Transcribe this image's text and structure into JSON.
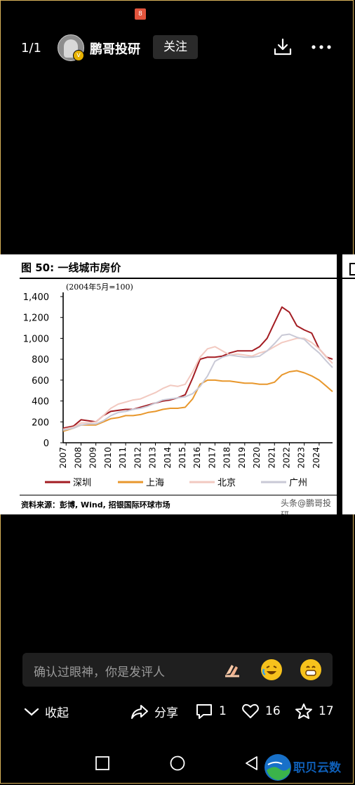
{
  "status": {
    "badge": "8"
  },
  "topbar": {
    "page_indicator": "1/1",
    "author": "鹏哥投研",
    "follow_label": "关注"
  },
  "figure": {
    "title": "图 50: 一线城市房价",
    "note": "(2004年5月=100)",
    "source": "资料来源：彭博, Wind, 招银国际环球市场",
    "watermark": "头条@鹏哥投研"
  },
  "chart_data": {
    "type": "line",
    "ylim": [
      0,
      1400
    ],
    "y_ticks": [
      "0",
      "200",
      "400",
      "600",
      "800",
      "1,000",
      "1,200",
      "1,400"
    ],
    "x_ticks": [
      "2007",
      "2008",
      "2009",
      "2010",
      "2011",
      "2012",
      "2013",
      "2014",
      "2015",
      "2016",
      "2017",
      "2018",
      "2019",
      "2020",
      "2021",
      "2022",
      "2023",
      "2024"
    ],
    "x": [
      2006.8,
      2007.5,
      2008.0,
      2008.5,
      2009.0,
      2009.5,
      2010.0,
      2010.5,
      2011.0,
      2011.5,
      2012.0,
      2012.5,
      2013.0,
      2013.5,
      2014.0,
      2014.5,
      2015.0,
      2015.5,
      2016.0,
      2016.5,
      2017.0,
      2017.5,
      2018.0,
      2018.5,
      2019.0,
      2019.5,
      2020.0,
      2020.5,
      2021.0,
      2021.5,
      2022.0,
      2022.5,
      2023.0,
      2023.5,
      2024.0,
      2024.5,
      2024.9
    ],
    "series": [
      {
        "name": "深圳",
        "color": "#a31c22",
        "values": [
          140,
          160,
          220,
          210,
          200,
          260,
          300,
          310,
          320,
          320,
          340,
          360,
          380,
          400,
          410,
          430,
          460,
          620,
          800,
          820,
          820,
          830,
          860,
          880,
          880,
          880,
          920,
          1000,
          1150,
          1300,
          1250,
          1120,
          1080,
          1050,
          900,
          820,
          800
        ]
      },
      {
        "name": "上海",
        "color": "#e8972c",
        "values": [
          110,
          140,
          170,
          170,
          170,
          200,
          230,
          240,
          260,
          260,
          270,
          290,
          300,
          320,
          330,
          330,
          340,
          420,
          560,
          600,
          600,
          590,
          590,
          580,
          570,
          570,
          560,
          560,
          580,
          650,
          680,
          690,
          670,
          640,
          600,
          540,
          490
        ]
      },
      {
        "name": "北京",
        "color": "#f2c9c0",
        "values": [
          130,
          150,
          190,
          190,
          200,
          260,
          330,
          370,
          390,
          410,
          420,
          450,
          480,
          520,
          550,
          540,
          560,
          680,
          820,
          900,
          920,
          880,
          840,
          850,
          840,
          830,
          860,
          880,
          920,
          960,
          980,
          1000,
          1000,
          960,
          900,
          820,
          760
        ]
      },
      {
        "name": "广州",
        "color": "#c9c9d6",
        "values": [
          120,
          140,
          170,
          180,
          180,
          210,
          260,
          290,
          300,
          320,
          330,
          350,
          380,
          410,
          420,
          430,
          440,
          470,
          540,
          640,
          780,
          820,
          840,
          830,
          820,
          820,
          830,
          880,
          950,
          1030,
          1040,
          1010,
          990,
          920,
          860,
          780,
          720
        ]
      }
    ]
  },
  "comment": {
    "placeholder": "确认过眼神，你是发评人"
  },
  "actions": {
    "collapse": "收起",
    "share": "分享",
    "comments": "1",
    "likes": "16",
    "favorites": "17"
  },
  "navbar": {
    "logo_text": "职贝云数"
  }
}
